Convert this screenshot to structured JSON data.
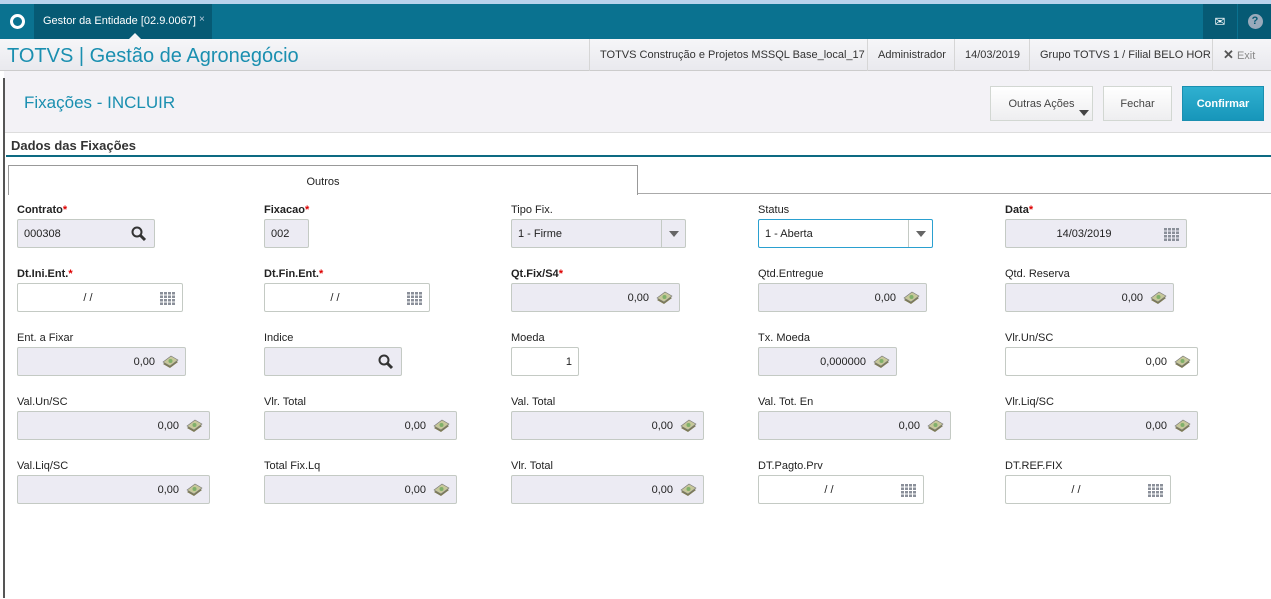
{
  "tabbar": {
    "tab_title": "Gestor da Entidade [02.9.0067]",
    "close": "×",
    "icons": [
      "logo-icon",
      "mail-icon",
      "help-icon"
    ]
  },
  "header": {
    "brand": "TOTVS | Gestão de Agronegócio",
    "environment": "TOTVS Construção e Projetos MSSQL Base_local_17",
    "user": "Administrador",
    "date": "14/03/2019",
    "branch": "Grupo TOTVS 1 / Filial BELO HOR",
    "exit": "Exit"
  },
  "page": {
    "title": "Fixações - INCLUIR",
    "other_actions": "Outras Ações",
    "close": "Fechar",
    "confirm": "Confirmar",
    "accent": "#1a8fb0"
  },
  "section": {
    "title": "Dados das Fixações",
    "tab": "Outros"
  },
  "fields": [
    {
      "label": "Contrato",
      "required": true,
      "value": "000308",
      "icon": "search-icon"
    },
    {
      "label": "Fixacao",
      "required": true,
      "value": "002",
      "icon": ""
    },
    {
      "label": "Tipo Fix.",
      "required": false,
      "value": "1 - Firme",
      "icon": "dropdown"
    },
    {
      "label": "Status",
      "required": false,
      "value": "1 - Aberta",
      "icon": "dropdown"
    },
    {
      "label": "Data",
      "required": true,
      "value": "14/03/2019",
      "icon": "calendar-icon"
    },
    {
      "label": "Dt.Ini.Ent.",
      "required": true,
      "value": "/ /",
      "icon": "calendar-icon"
    },
    {
      "label": "Dt.Fin.Ent.",
      "required": true,
      "value": "/ /",
      "icon": "calendar-icon"
    },
    {
      "label": "Qt.Fix/S4",
      "required": true,
      "value": "0,00",
      "icon": "calculator-icon"
    },
    {
      "label": "Qtd.Entregue",
      "required": false,
      "value": "0,00",
      "icon": "calculator-icon"
    },
    {
      "label": "Qtd. Reserva",
      "required": false,
      "value": "0,00",
      "icon": "calculator-icon"
    },
    {
      "label": "Ent. a Fixar",
      "required": false,
      "value": "0,00",
      "icon": "calculator-icon"
    },
    {
      "label": "Indice",
      "required": false,
      "value": "",
      "icon": "search-icon"
    },
    {
      "label": "Moeda",
      "required": false,
      "value": "1",
      "icon": ""
    },
    {
      "label": "Tx. Moeda",
      "required": false,
      "value": "0,000000",
      "icon": "calculator-icon"
    },
    {
      "label": "Vlr.Un/SC",
      "required": false,
      "value": "0,00",
      "icon": "calculator-icon"
    },
    {
      "label": "Val.Un/SC",
      "required": false,
      "value": "0,00",
      "icon": "calculator-icon"
    },
    {
      "label": "Vlr. Total",
      "required": false,
      "value": "0,00",
      "icon": "calculator-icon"
    },
    {
      "label": "Val. Total",
      "required": false,
      "value": "0,00",
      "icon": "calculator-icon"
    },
    {
      "label": "Val. Tot. En",
      "required": false,
      "value": "0,00",
      "icon": "calculator-icon"
    },
    {
      "label": "Vlr.Liq/SC",
      "required": false,
      "value": "0,00",
      "icon": "calculator-icon"
    },
    {
      "label": "Val.Liq/SC",
      "required": false,
      "value": "0,00",
      "icon": "calculator-icon"
    },
    {
      "label": "Total Fix.Lq",
      "required": false,
      "value": "0,00",
      "icon": "calculator-icon"
    },
    {
      "label": "Vlr. Total",
      "required": false,
      "value": "0,00",
      "icon": "calculator-icon"
    },
    {
      "label": "DT.Pagto.Prv",
      "required": false,
      "value": "/ /",
      "icon": "calendar-icon"
    },
    {
      "label": "DT.REF.FIX",
      "required": false,
      "value": "/ /",
      "icon": "calendar-icon"
    }
  ]
}
